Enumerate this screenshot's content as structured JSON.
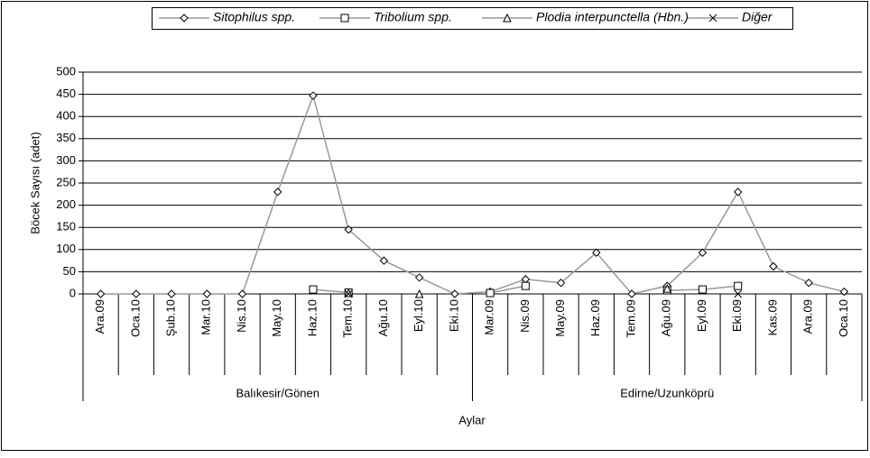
{
  "chart_data": {
    "type": "line",
    "y_label": "Böcek Sayısı (adet)",
    "x_label": "Aylar",
    "groups": [
      {
        "name": "Balıkesir/Gönen",
        "categories": [
          "Ara.09",
          "Oca.10",
          "Şub.10",
          "Mar.10",
          "Nis.10",
          "May.10",
          "Haz.10",
          "Tem.10",
          "Ağu.10",
          "Eyl.10",
          "Eki.10"
        ]
      },
      {
        "name": "Edirne/Uzunköprü",
        "categories": [
          "Mar.09",
          "Nis.09",
          "May.09",
          "Haz.09",
          "Tem.09",
          "Ağu.09",
          "Eyl.09",
          "Eki.09",
          "Kas.09",
          "Ara.09",
          "Oca.10"
        ]
      }
    ],
    "series": [
      {
        "name": "Sitophilus spp.",
        "color": "#999999",
        "marker": "diamond",
        "values": [
          0,
          0,
          0,
          0,
          0,
          230,
          447,
          145,
          75,
          37,
          0,
          5,
          33,
          25,
          93,
          0,
          18,
          93,
          230,
          62,
          25,
          5
        ]
      },
      {
        "name": "Tribolium spp.",
        "color": "#999999",
        "marker": "square",
        "values": [
          null,
          null,
          null,
          null,
          null,
          null,
          10,
          3,
          null,
          null,
          null,
          2,
          18,
          null,
          null,
          null,
          8,
          10,
          18,
          null,
          null,
          null
        ]
      },
      {
        "name": "Plodia interpunctella (Hbn.)",
        "color": "#999999",
        "marker": "triangle",
        "values": [
          null,
          null,
          null,
          null,
          null,
          null,
          null,
          2,
          null,
          0,
          null,
          null,
          null,
          null,
          null,
          null,
          12,
          null,
          null,
          null,
          null,
          null
        ]
      },
      {
        "name": "Diğer",
        "color": "#999999",
        "marker": "x",
        "values": [
          null,
          null,
          null,
          null,
          null,
          null,
          null,
          0,
          null,
          null,
          null,
          null,
          null,
          null,
          null,
          null,
          null,
          null,
          0,
          null,
          null,
          null
        ]
      }
    ],
    "ylim": [
      0,
      500
    ],
    "yticks": [
      0,
      50,
      100,
      150,
      200,
      250,
      300,
      350,
      400,
      450,
      500
    ],
    "grid": true
  }
}
